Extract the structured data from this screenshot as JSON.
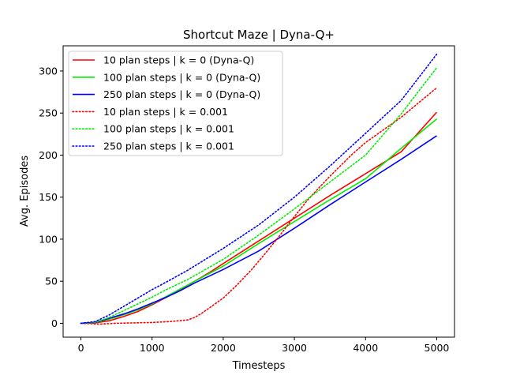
{
  "chart_data": {
    "type": "line",
    "title": "Shortcut Maze | Dyna-Q+",
    "xlabel": "Timesteps",
    "ylabel": "Avg. Episodes",
    "xlim": [
      -250,
      5250
    ],
    "ylim": [
      -16.5,
      330
    ],
    "xticks": [
      0,
      1000,
      2000,
      3000,
      4000,
      5000
    ],
    "yticks": [
      0,
      50,
      100,
      150,
      200,
      250,
      300
    ],
    "legend_position": "top-left",
    "series": [
      {
        "name": "10 plan steps | k = 0 (Dyna-Q)",
        "color": "#ff0000",
        "style": "solid",
        "x": [
          0,
          200,
          400,
          600,
          800,
          1000,
          1200,
          1400,
          1600,
          1800,
          2000,
          2500,
          3000,
          3500,
          4000,
          4500,
          5000
        ],
        "y": [
          0,
          0.5,
          3,
          8,
          14,
          22,
          31,
          40,
          50,
          60,
          71,
          98,
          125,
          152,
          178,
          204,
          251
        ]
      },
      {
        "name": "100 plan steps | k = 0 (Dyna-Q)",
        "color": "#00ee00",
        "style": "solid",
        "x": [
          0,
          200,
          400,
          600,
          800,
          1000,
          1200,
          1400,
          1600,
          1800,
          2000,
          2500,
          3000,
          3500,
          4000,
          4500,
          5000
        ],
        "y": [
          0,
          1,
          5,
          10,
          16,
          23,
          32,
          41,
          50,
          59,
          68,
          95,
          121,
          147,
          172,
          208,
          243
        ]
      },
      {
        "name": "250 plan steps | k = 0 (Dyna-Q)",
        "color": "#0000ff",
        "style": "solid",
        "x": [
          0,
          200,
          400,
          600,
          800,
          1000,
          1200,
          1400,
          1600,
          1800,
          2000,
          2500,
          3000,
          3500,
          4000,
          4500,
          5000
        ],
        "y": [
          0,
          1,
          6,
          11,
          17,
          24,
          31,
          39,
          48,
          56,
          64,
          86,
          113,
          141,
          168,
          195,
          223
        ]
      },
      {
        "name": "10 plan steps | k = 0.001",
        "color": "#ff0000",
        "style": "dotted",
        "x": [
          0,
          250,
          500,
          750,
          1000,
          1250,
          1500,
          1600,
          1700,
          1800,
          1900,
          2000,
          2200,
          2400,
          2600,
          2800,
          3000,
          3200,
          3500,
          3800,
          4000,
          4500,
          5000
        ],
        "y": [
          0,
          -1,
          0,
          0.5,
          1,
          2,
          4,
          7,
          12,
          18,
          24,
          30,
          46,
          64,
          84,
          105,
          127,
          148,
          175,
          200,
          215,
          245,
          280
        ]
      },
      {
        "name": "100 plan steps | k = 0.001",
        "color": "#00ee00",
        "style": "dotted",
        "x": [
          0,
          200,
          400,
          600,
          800,
          1000,
          1200,
          1500,
          2000,
          2500,
          3000,
          3500,
          4000,
          4500,
          5000
        ],
        "y": [
          0,
          1,
          7,
          15,
          23,
          31,
          40,
          52,
          76,
          105,
          136,
          168,
          200,
          249,
          304
        ]
      },
      {
        "name": "250 plan steps | k = 0.001",
        "color": "#0000ff",
        "style": "dotted",
        "x": [
          0,
          200,
          400,
          600,
          800,
          1000,
          1200,
          1500,
          2000,
          2500,
          3000,
          3500,
          4000,
          4500,
          5000
        ],
        "y": [
          0,
          2,
          10,
          20,
          30,
          40,
          49,
          63,
          89,
          117,
          150,
          187,
          226,
          265,
          320
        ]
      }
    ]
  }
}
